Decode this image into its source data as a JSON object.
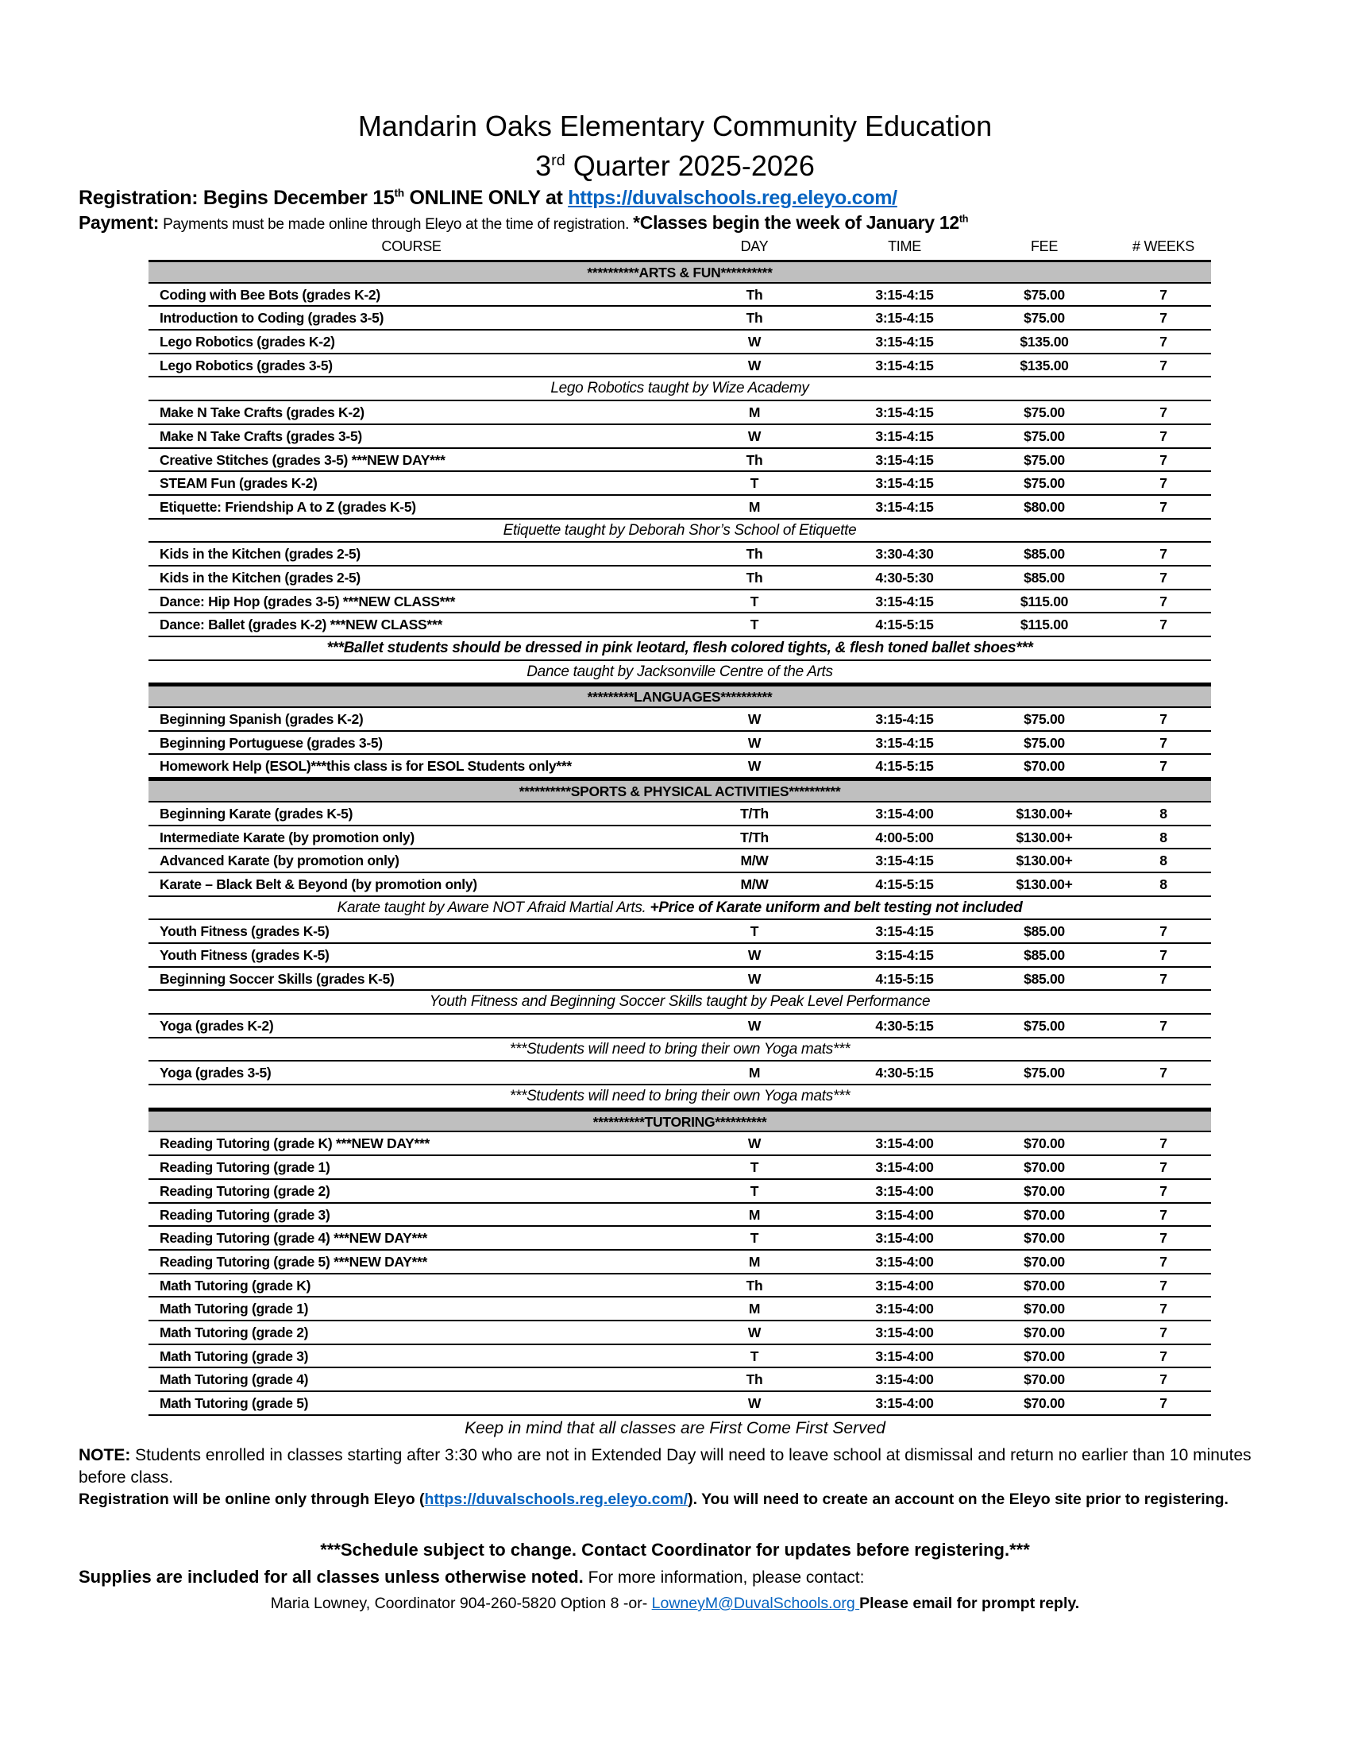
{
  "header": {
    "title_line1": "Mandarin Oaks Elementary Community Education",
    "title_line2_prefix": "3",
    "title_line2_sup": "rd",
    "title_line2_rest": " Quarter 2025-2026",
    "registration_label": "Registration: Begins December 15",
    "registration_sup": "th",
    "registration_rest": " ONLINE ONLY at ",
    "registration_link": "https://duvalschools.reg.eleyo.com/",
    "payment_label": "Payment:",
    "payment_text": " Payments must be made online through Eleyo at the time of registration. ",
    "classes_begin": "*Classes begin the week of January 12",
    "classes_begin_sup": "th"
  },
  "columns": [
    "COURSE",
    "DAY",
    "TIME",
    "FEE",
    "# WEEKS"
  ],
  "rows": [
    {
      "type": "section",
      "text": "**********ARTS & FUN**********"
    },
    {
      "type": "course",
      "cells": [
        "Coding with Bee Bots (grades K-2)",
        "Th",
        "3:15-4:15",
        "$75.00",
        "7"
      ]
    },
    {
      "type": "course",
      "cells": [
        "Introduction to Coding (grades 3-5)",
        "Th",
        "3:15-4:15",
        "$75.00",
        "7"
      ]
    },
    {
      "type": "course",
      "cells": [
        "Lego Robotics (grades K-2)",
        "W",
        "3:15-4:15",
        "$135.00",
        "7"
      ]
    },
    {
      "type": "course",
      "cells": [
        "Lego Robotics (grades 3-5)",
        "W",
        "3:15-4:15",
        "$135.00",
        "7"
      ]
    },
    {
      "type": "note",
      "text": "Lego Robotics taught by Wize Academy"
    },
    {
      "type": "course",
      "cells": [
        "Make N Take Crafts (grades K-2)",
        "M",
        "3:15-4:15",
        "$75.00",
        "7"
      ]
    },
    {
      "type": "course",
      "cells": [
        "Make N Take Crafts (grades 3-5)",
        "W",
        "3:15-4:15",
        "$75.00",
        "7"
      ]
    },
    {
      "type": "course",
      "cells": [
        "Creative Stitches (grades 3-5) ***NEW DAY***",
        "Th",
        "3:15-4:15",
        "$75.00",
        "7"
      ]
    },
    {
      "type": "course",
      "cells": [
        "STEAM Fun (grades K-2)",
        "T",
        "3:15-4:15",
        "$75.00",
        "7"
      ]
    },
    {
      "type": "course",
      "cells": [
        "Etiquette: Friendship A to Z (grades K-5)",
        "M",
        "3:15-4:15",
        "$80.00",
        "7"
      ]
    },
    {
      "type": "note",
      "text": "Etiquette taught by Deborah Shor’s School of Etiquette"
    },
    {
      "type": "course",
      "cells": [
        "Kids in the Kitchen (grades 2-5)",
        "Th",
        "3:30-4:30",
        "$85.00",
        "7"
      ]
    },
    {
      "type": "course",
      "cells": [
        "Kids in the Kitchen (grades 2-5)",
        "Th",
        "4:30-5:30",
        "$85.00",
        "7"
      ]
    },
    {
      "type": "course",
      "cells": [
        "Dance: Hip Hop (grades 3-5) ***NEW CLASS***",
        "T",
        "3:15-4:15",
        "$115.00",
        "7"
      ]
    },
    {
      "type": "course",
      "cells": [
        "Dance: Ballet (grades K-2) ***NEW CLASS***",
        "T",
        "4:15-5:15",
        "$115.00",
        "7"
      ]
    },
    {
      "type": "notebold",
      "text": "***Ballet students should be dressed in pink leotard, flesh colored tights, & flesh toned ballet shoes***"
    },
    {
      "type": "note",
      "text": "Dance taught by Jacksonville Centre of the Arts"
    },
    {
      "type": "section",
      "text": "*********LANGUAGES**********"
    },
    {
      "type": "course",
      "cells": [
        "Beginning Spanish (grades K-2)",
        "W",
        "3:15-4:15",
        "$75.00",
        "7"
      ]
    },
    {
      "type": "course",
      "cells": [
        "Beginning Portuguese (grades 3-5)",
        "W",
        "3:15-4:15",
        "$75.00",
        "7"
      ]
    },
    {
      "type": "course",
      "cells": [
        "Homework Help (ESOL)***this class is for ESOL Students only***",
        "W",
        "4:15-5:15",
        "$70.00",
        "7"
      ]
    },
    {
      "type": "section",
      "text": "**********SPORTS & PHYSICAL ACTIVITIES**********"
    },
    {
      "type": "course",
      "cells": [
        "Beginning Karate (grades K-5)",
        "T/Th",
        "3:15-4:00",
        "$130.00+",
        "8"
      ]
    },
    {
      "type": "course",
      "cells": [
        "Intermediate Karate  (by promotion only)",
        "T/Th",
        "4:00-5:00",
        "$130.00+",
        "8"
      ]
    },
    {
      "type": "course",
      "cells": [
        "Advanced Karate (by promotion only)",
        "M/W",
        "3:15-4:15",
        "$130.00+",
        "8"
      ]
    },
    {
      "type": "course",
      "cells": [
        "Karate – Black Belt & Beyond (by promotion only)",
        "M/W",
        "4:15-5:15",
        "$130.00+",
        "8"
      ]
    },
    {
      "type": "note",
      "text": "Karate taught by Aware NOT Afraid Martial Arts. ",
      "bold_text": "+Price of Karate uniform and belt testing not included"
    },
    {
      "type": "course",
      "cells": [
        "Youth Fitness (grades K-5)",
        "T",
        "3:15-4:15",
        "$85.00",
        "7"
      ]
    },
    {
      "type": "course",
      "cells": [
        "Youth Fitness (grades K-5)",
        "W",
        "3:15-4:15",
        "$85.00",
        "7"
      ]
    },
    {
      "type": "course",
      "cells": [
        "Beginning Soccer Skills (grades K-5)",
        "W",
        "4:15-5:15",
        "$85.00",
        "7"
      ]
    },
    {
      "type": "note",
      "text": "Youth Fitness and Beginning Soccer Skills taught by Peak Level Performance"
    },
    {
      "type": "course",
      "cells": [
        "Yoga (grades K-2)",
        "W",
        "4:30-5:15",
        "$75.00",
        "7"
      ]
    },
    {
      "type": "note",
      "text": "***Students will need to bring their own Yoga mats***"
    },
    {
      "type": "course",
      "cells": [
        "Yoga (grades 3-5)",
        "M",
        "4:30-5:15",
        "$75.00",
        "7"
      ]
    },
    {
      "type": "note",
      "text": "***Students will need to bring their own Yoga mats***"
    },
    {
      "type": "section",
      "text": "**********TUTORING**********"
    },
    {
      "type": "course",
      "cells": [
        "Reading Tutoring (grade K) ***NEW DAY***",
        "W",
        "3:15-4:00",
        "$70.00",
        "7"
      ]
    },
    {
      "type": "course",
      "cells": [
        "Reading Tutoring (grade 1)",
        "T",
        "3:15-4:00",
        "$70.00",
        "7"
      ]
    },
    {
      "type": "course",
      "cells": [
        "Reading Tutoring (grade 2)",
        "T",
        "3:15-4:00",
        "$70.00",
        "7"
      ]
    },
    {
      "type": "course",
      "cells": [
        "Reading Tutoring (grade 3)",
        "M",
        "3:15-4:00",
        "$70.00",
        "7"
      ]
    },
    {
      "type": "course",
      "cells": [
        "Reading Tutoring (grade 4) ***NEW DAY***",
        "T",
        "3:15-4:00",
        "$70.00",
        "7"
      ]
    },
    {
      "type": "course",
      "cells": [
        "Reading Tutoring (grade 5) ***NEW DAY***",
        "M",
        "3:15-4:00",
        "$70.00",
        "7"
      ]
    },
    {
      "type": "course",
      "cells": [
        "Math Tutoring (grade K)",
        "Th",
        "3:15-4:00",
        "$70.00",
        "7"
      ]
    },
    {
      "type": "course",
      "cells": [
        "Math Tutoring (grade 1)",
        "M",
        "3:15-4:00",
        "$70.00",
        "7"
      ]
    },
    {
      "type": "course",
      "cells": [
        "Math Tutoring (grade 2)",
        "W",
        "3:15-4:00",
        "$70.00",
        "7"
      ]
    },
    {
      "type": "course",
      "cells": [
        "Math Tutoring (grade 3)",
        "T",
        "3:15-4:00",
        "$70.00",
        "7"
      ]
    },
    {
      "type": "course",
      "cells": [
        "Math Tutoring (grade 4)",
        "Th",
        "3:15-4:00",
        "$70.00",
        "7"
      ]
    },
    {
      "type": "course",
      "cells": [
        "Math Tutoring (grade 5)",
        "W",
        "3:15-4:00",
        "$70.00",
        "7"
      ]
    }
  ],
  "footer": {
    "first_come": "Keep in mind that all classes are First Come First Served",
    "note_label": "NOTE:",
    "note_text": " Students enrolled in classes starting after 3:30 who are not in Extended Day will need to leave school at dismissal and return no earlier than 10 minutes before class.",
    "reg_text1": "Registration will be online only through Eleyo (",
    "reg_link": "https://duvalschools.reg.eleyo.com/",
    "reg_text2": "). You will need to create an account on the Eleyo site prior to registering.",
    "schedule_change": "***Schedule subject to change. Contact Coordinator for updates before registering.***",
    "supplies_bold": "Supplies are included for all classes unless otherwise noted.",
    "supplies_rest": " For more information, please contact:",
    "contact_text": "Maria Lowney, Coordinator 904-260-5820 Option 8  -or- ",
    "contact_email": "LowneyM@DuvalSchools.org ",
    "contact_tail": " Please email for prompt reply."
  },
  "colors": {
    "section_bg": "#bfbfbf",
    "link": "#0563c1"
  }
}
